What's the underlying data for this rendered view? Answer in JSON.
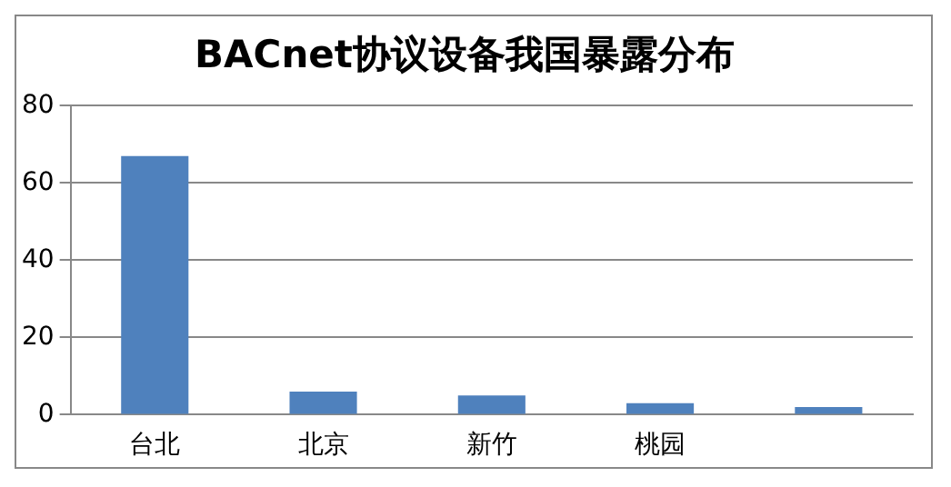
{
  "chart_data": {
    "type": "bar",
    "title": "BACnet协议设备我国暴露分布",
    "categories": [
      "台北",
      "北京",
      "新竹",
      "桃园",
      null
    ],
    "values": [
      67,
      6,
      5,
      3,
      2
    ],
    "color": "#4f81bd",
    "ylim": [
      0,
      80
    ],
    "yticks": [
      0,
      20,
      40,
      60,
      80
    ],
    "grid": "y",
    "legend": false
  }
}
